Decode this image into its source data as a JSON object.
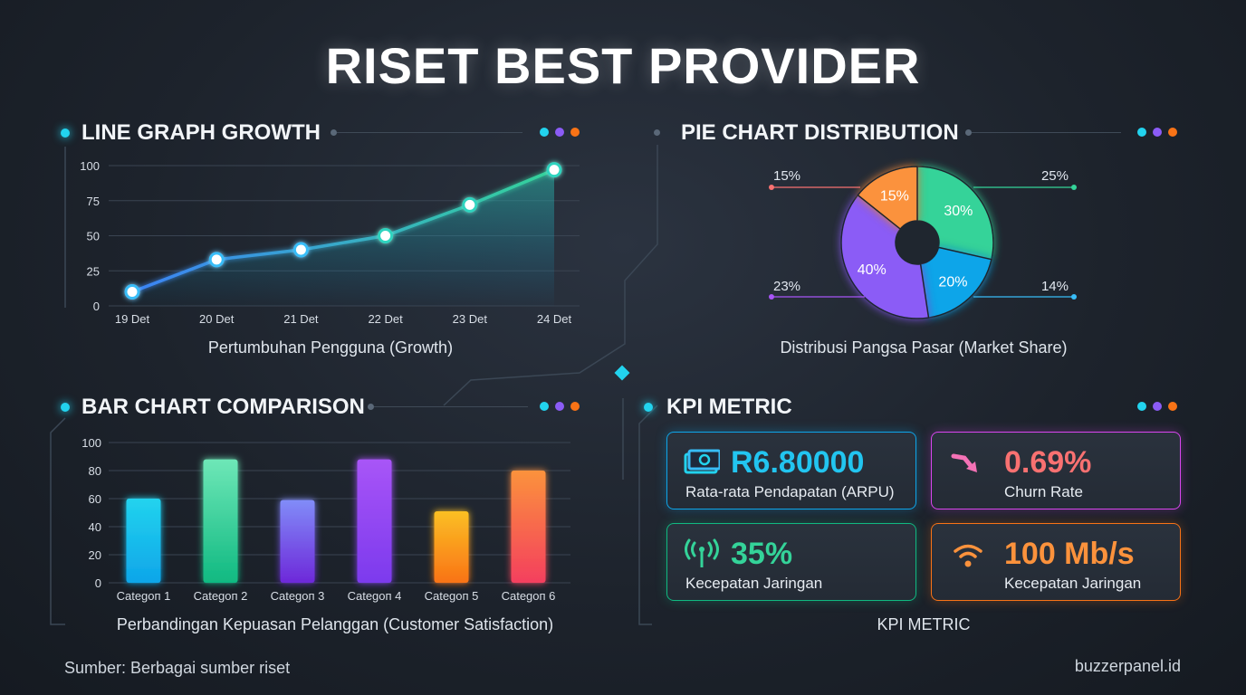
{
  "title": "RISET BEST PROVIDER",
  "colors": {
    "cyan": "#22d3ee",
    "purple": "#8b5cf6",
    "orange": "#f97316",
    "green": "#34d399",
    "pink": "#f472b6"
  },
  "sections": {
    "line": {
      "title": "LINE GRAPH GROWTH",
      "caption": "Pertumbuhan Pengguna (Growth)"
    },
    "pie": {
      "title": "PIE CHART DISTRIBUTION",
      "caption": "Distribusi Pangsa Pasar (Market Share)"
    },
    "bar": {
      "title": "BAR CHART COMPARISON",
      "caption": "Perbandingan Kepuasan Pelanggan (Customer Satisfaction)"
    },
    "kpi": {
      "title": "KPI METRIC",
      "caption": "KPI METRIC"
    }
  },
  "chart_data": [
    {
      "type": "line",
      "x": [
        "19 Det",
        "20 Det",
        "21 Det",
        "22 Det",
        "23 Det",
        "24 Det"
      ],
      "y": [
        10,
        33,
        40,
        50,
        72,
        97
      ],
      "yticks": [
        0,
        25,
        50,
        75,
        100
      ],
      "ylim": [
        0,
        100
      ],
      "grid": true
    },
    {
      "type": "pie",
      "slices": [
        {
          "label": "30%",
          "value": 30,
          "color": "#34d399"
        },
        {
          "label": "20%",
          "value": 20,
          "color": "#0ea5e9"
        },
        {
          "label": "40%",
          "value": 40,
          "color": "#8b5cf6"
        },
        {
          "label": "15%",
          "value": 15,
          "color": "#fb923c"
        }
      ],
      "callouts": [
        {
          "text": "15%",
          "color": "#f87171"
        },
        {
          "text": "25%",
          "color": "#34d399"
        },
        {
          "text": "23%",
          "color": "#a855f7"
        },
        {
          "text": "14%",
          "color": "#38bdf8"
        }
      ],
      "donut": true
    },
    {
      "type": "bar",
      "categories": [
        "Categoп 1",
        "Categoп 2",
        "Categoп 3",
        "Categoп 4",
        "Categoп 5",
        "Categoп 6"
      ],
      "values": [
        60,
        88,
        59,
        88,
        51,
        80
      ],
      "yticks": [
        0,
        20,
        40,
        60,
        80,
        100
      ],
      "ylim": [
        0,
        100
      ],
      "grid": true,
      "colors": [
        [
          "#22d3ee",
          "#0ea5e9"
        ],
        [
          "#6ee7b7",
          "#10b981"
        ],
        [
          "#818cf8",
          "#6d28d9"
        ],
        [
          "#a855f7",
          "#7c3aed"
        ],
        [
          "#fbbf24",
          "#f97316"
        ],
        [
          "#fb923c",
          "#f43f5e"
        ]
      ]
    }
  ],
  "kpis": [
    {
      "value": "R6.80000",
      "label": "Rata-rata Pendapatan (ARPU)",
      "icon": "money-icon",
      "color": "#22d3ee"
    },
    {
      "value": "0.69%",
      "label": "Churn Rate",
      "icon": "trend-down-icon",
      "color": "#f87171"
    },
    {
      "value": "35%",
      "label": "Kecepatan Jaringan",
      "icon": "signal-tower-icon",
      "color": "#34d399"
    },
    {
      "value": "100 Mb/s",
      "label": "Kecepatan Jaringan",
      "icon": "wifi-icon",
      "color": "#fb923c"
    }
  ],
  "footer": {
    "source": "Sumber: Berbagai sumber riset",
    "brand": "buzzerpanel.id"
  }
}
